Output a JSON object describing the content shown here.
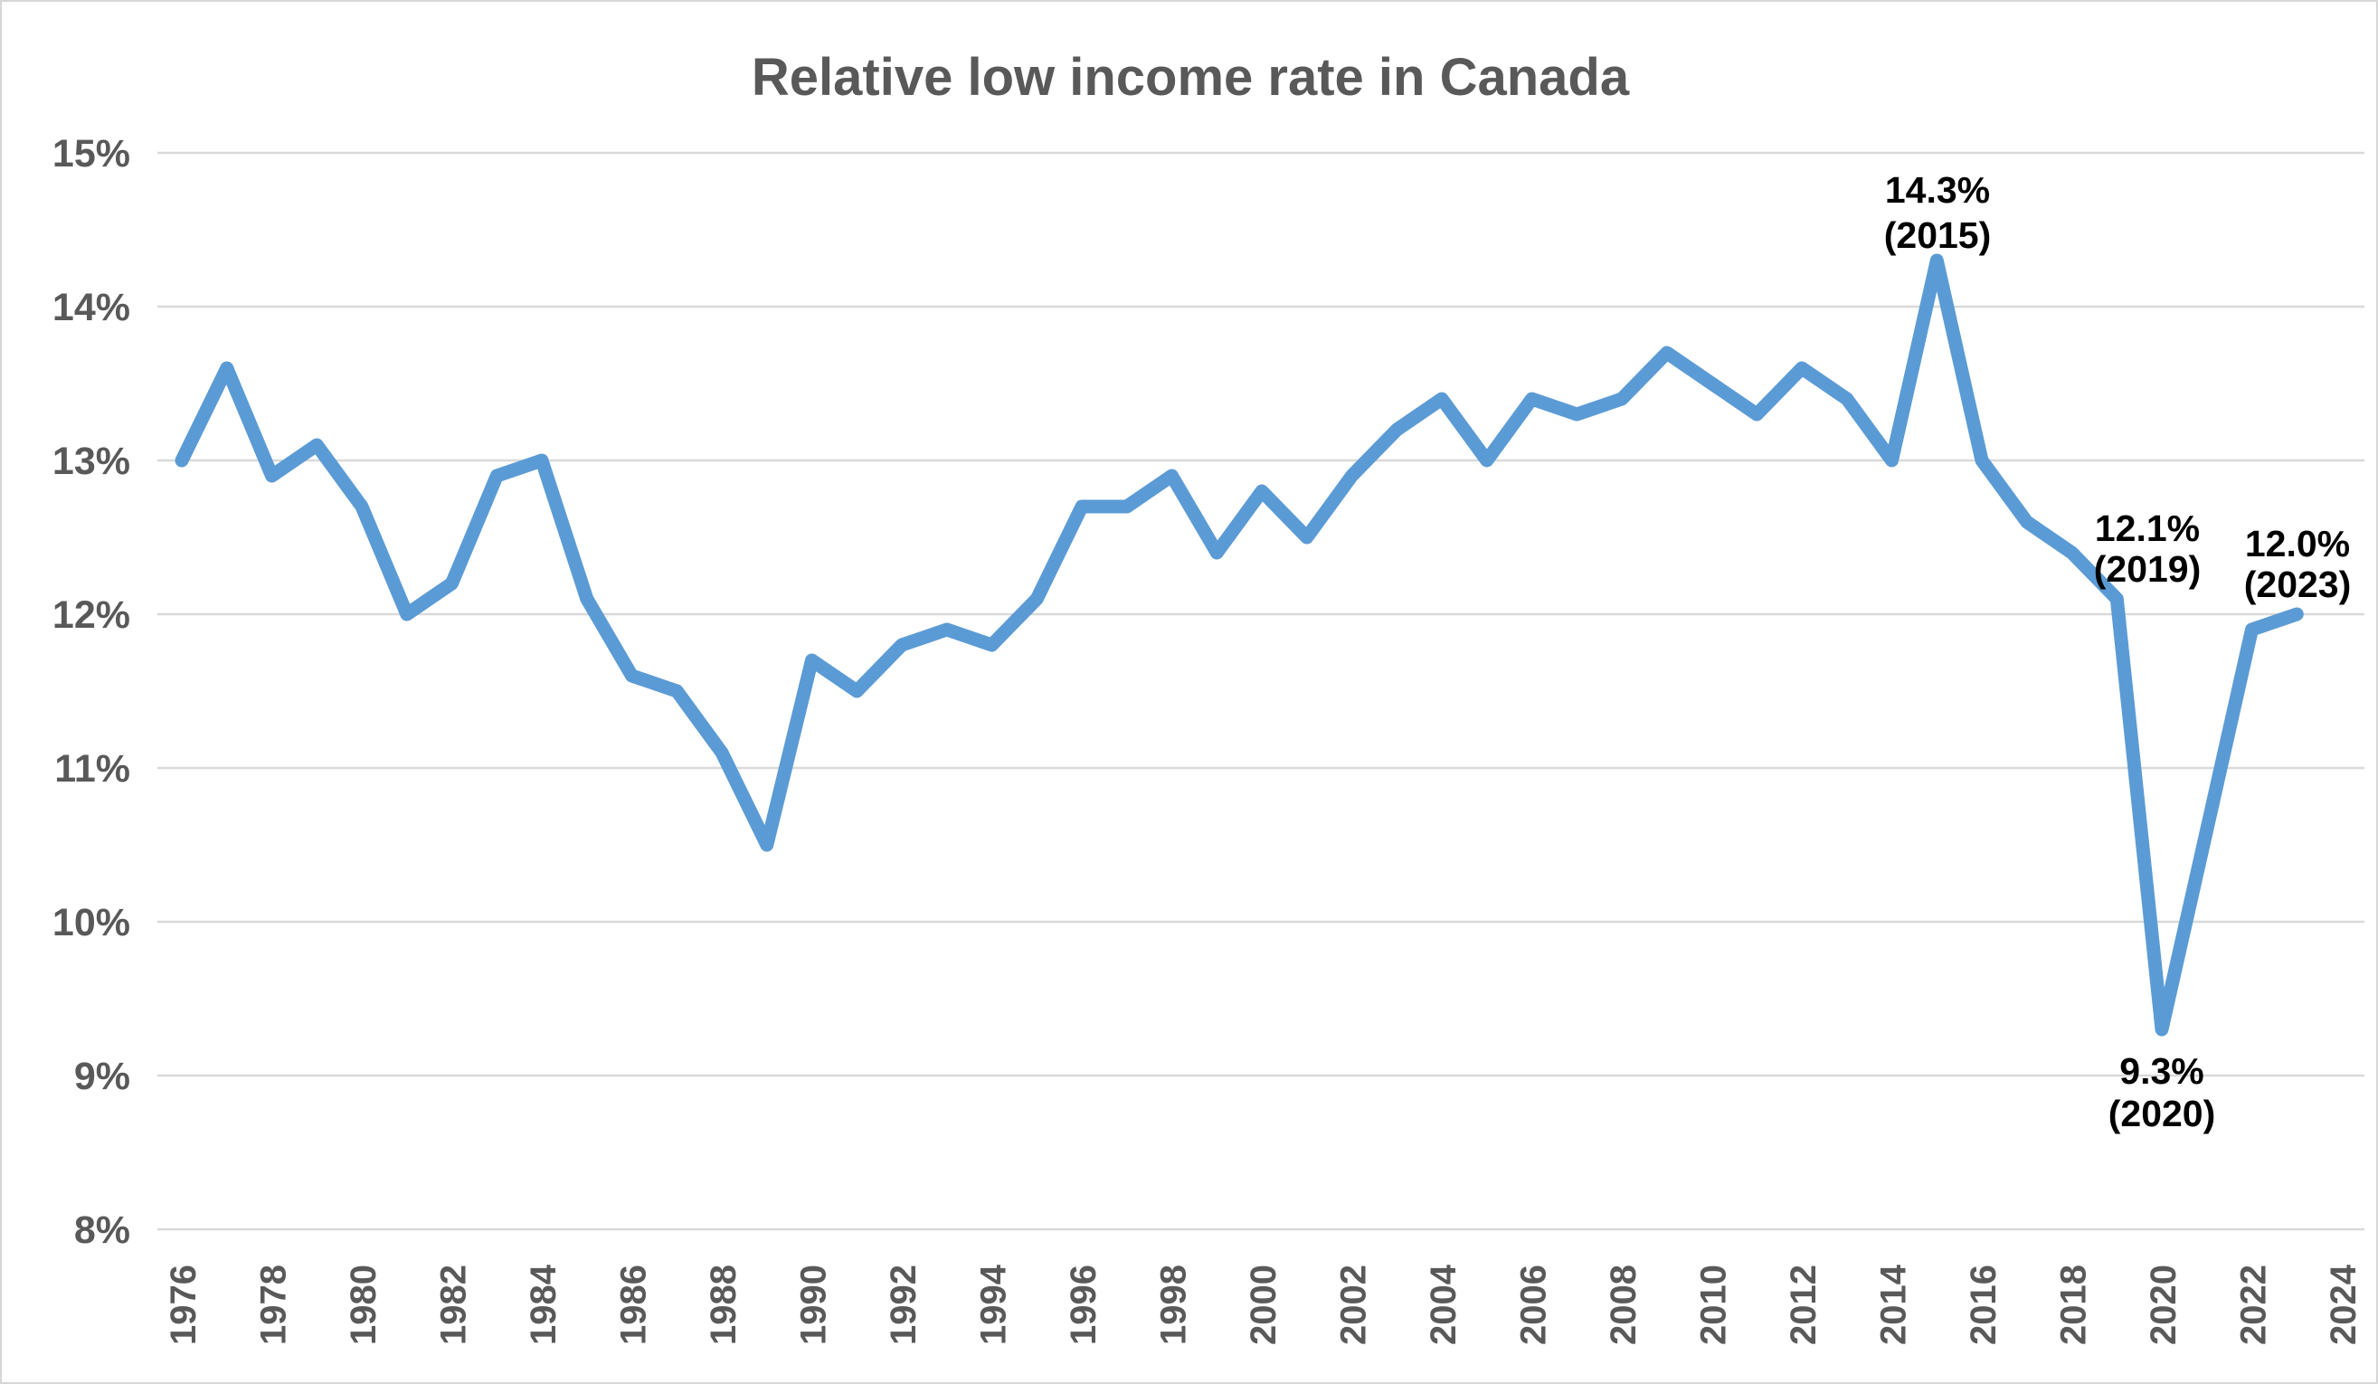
{
  "title": "Relative low income rate in Canada",
  "chart_data": {
    "type": "line",
    "title": "Relative low income rate in Canada",
    "x": [
      1976,
      1977,
      1978,
      1979,
      1980,
      1981,
      1982,
      1983,
      1984,
      1985,
      1986,
      1987,
      1988,
      1989,
      1990,
      1991,
      1992,
      1993,
      1994,
      1995,
      1996,
      1997,
      1998,
      1999,
      2000,
      2001,
      2002,
      2003,
      2004,
      2005,
      2006,
      2007,
      2008,
      2009,
      2010,
      2011,
      2012,
      2013,
      2014,
      2015,
      2016,
      2017,
      2018,
      2019,
      2020,
      2021,
      2022,
      2023
    ],
    "series": [
      {
        "name": "Relative low income rate",
        "values": [
          13.0,
          13.6,
          12.9,
          13.1,
          12.7,
          12.0,
          12.2,
          12.9,
          13.0,
          12.1,
          11.6,
          11.5,
          11.1,
          10.5,
          11.7,
          11.5,
          11.8,
          11.9,
          11.8,
          12.1,
          12.7,
          12.7,
          12.9,
          12.4,
          12.8,
          12.5,
          12.9,
          13.2,
          13.4,
          13.0,
          13.4,
          13.3,
          13.4,
          13.7,
          13.5,
          13.3,
          13.6,
          13.4,
          13.0,
          14.3,
          13.0,
          12.6,
          12.4,
          12.1,
          9.3,
          10.6,
          11.9,
          12.0
        ]
      }
    ],
    "xlabel": "",
    "ylabel": "",
    "ylim": [
      8,
      15
    ],
    "yticks": [
      {
        "value": 15,
        "label": "15%"
      },
      {
        "value": 14,
        "label": "14%"
      },
      {
        "value": 13,
        "label": "13%"
      },
      {
        "value": 12,
        "label": "12%"
      },
      {
        "value": 11,
        "label": "11%"
      },
      {
        "value": 10,
        "label": "10%"
      },
      {
        "value": 9,
        "label": "9%"
      },
      {
        "value": 8,
        "label": "8%"
      }
    ],
    "xticks": [
      1976,
      1978,
      1980,
      1982,
      1984,
      1986,
      1988,
      1990,
      1992,
      1994,
      1996,
      1998,
      2000,
      2002,
      2004,
      2006,
      2008,
      2010,
      2012,
      2014,
      2016,
      2018,
      2020,
      2022,
      2024
    ],
    "grid": true,
    "legend_position": "none",
    "annotations": [
      {
        "year": 2015,
        "value_label": "14.3%",
        "year_label": "(2015)",
        "placement": "above"
      },
      {
        "year": 2019,
        "value_label": "12.1%",
        "year_label": "(2019)",
        "placement": "above"
      },
      {
        "year": 2023,
        "value_label": "12.0%",
        "year_label": "(2023)",
        "placement": "above"
      },
      {
        "year": 2020,
        "value_label": "9.3%",
        "year_label": "(2020)",
        "placement": "below"
      }
    ],
    "colors": {
      "line": "#5B9BD5",
      "gridline": "#D9D9D9",
      "axis_labels": "#595959",
      "title": "#595959",
      "annotations": "#000000",
      "background": "#FFFFFF"
    }
  }
}
